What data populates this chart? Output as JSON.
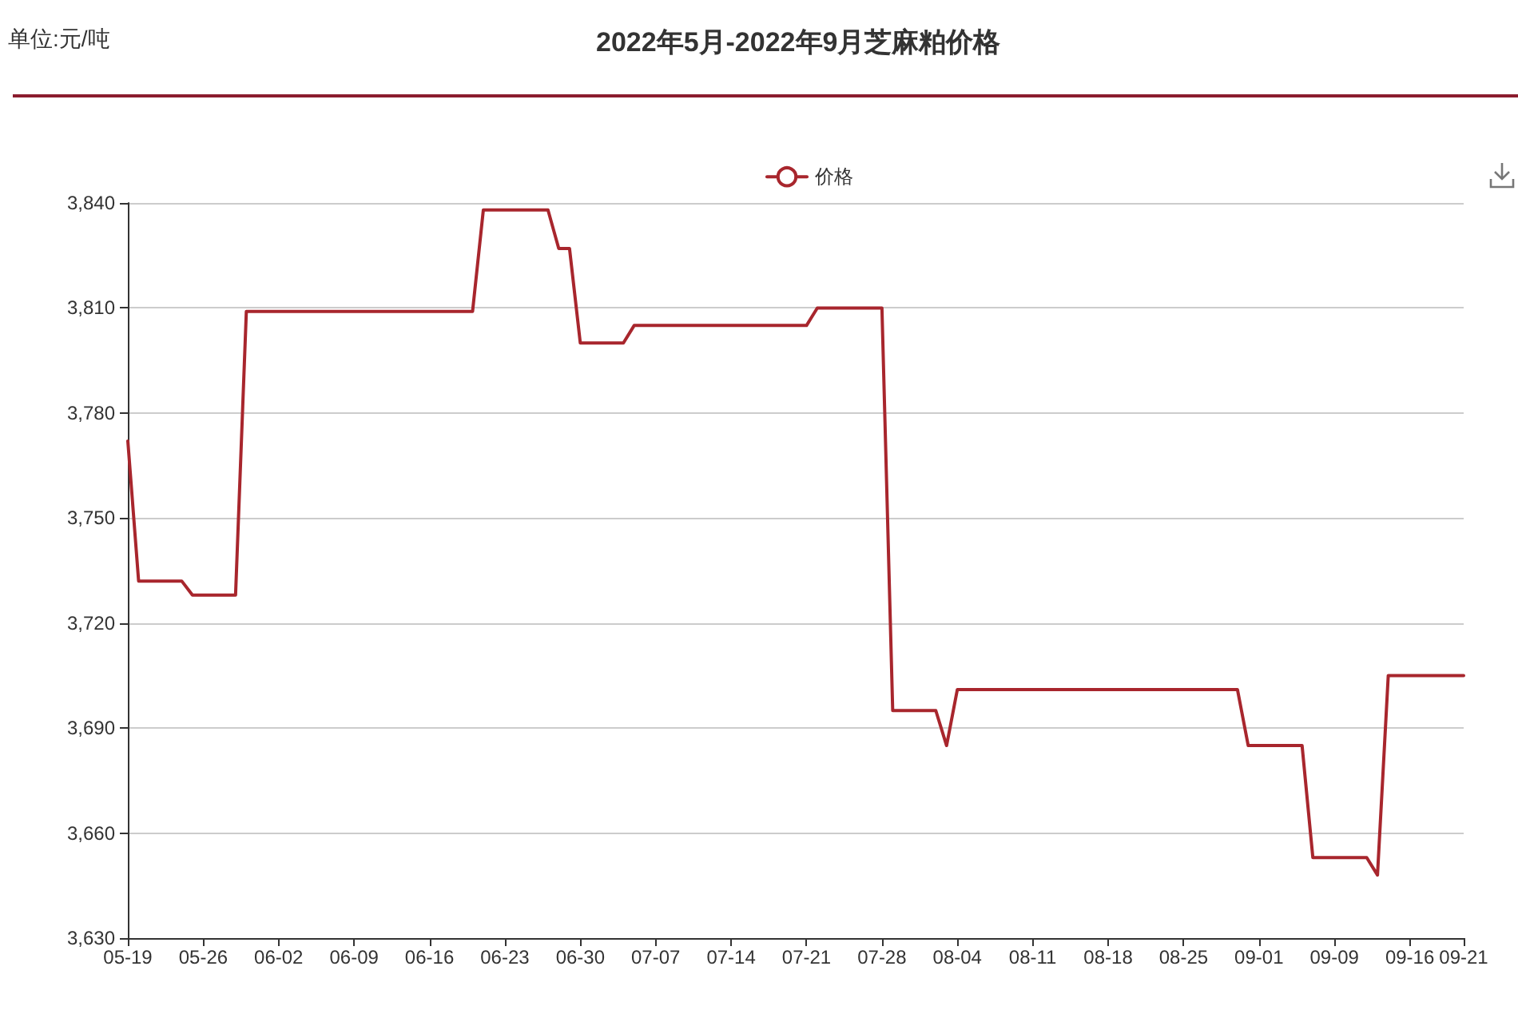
{
  "chart_data": {
    "type": "line",
    "title": "2022年5月-2022年9月芝麻粕价格",
    "annotations": [
      "单位:元/吨"
    ],
    "categories": [
      "05-19",
      null,
      null,
      null,
      null,
      null,
      null,
      "05-26",
      null,
      null,
      null,
      null,
      null,
      null,
      "06-02",
      null,
      null,
      null,
      null,
      null,
      null,
      "06-09",
      null,
      null,
      null,
      null,
      null,
      null,
      "06-16",
      null,
      null,
      null,
      null,
      null,
      null,
      "06-23",
      null,
      null,
      null,
      null,
      null,
      null,
      "06-30",
      null,
      null,
      null,
      null,
      null,
      null,
      "07-07",
      null,
      null,
      null,
      null,
      null,
      null,
      "07-14",
      null,
      null,
      null,
      null,
      null,
      null,
      "07-21",
      null,
      null,
      null,
      null,
      null,
      null,
      "07-28",
      null,
      null,
      null,
      null,
      null,
      null,
      "08-04",
      null,
      null,
      null,
      null,
      null,
      null,
      "08-11",
      null,
      null,
      null,
      null,
      null,
      null,
      "08-18",
      null,
      null,
      null,
      null,
      null,
      null,
      "08-25",
      null,
      null,
      null,
      null,
      null,
      null,
      "09-01",
      null,
      null,
      null,
      null,
      null,
      null,
      "09-09",
      null,
      null,
      null,
      null,
      null,
      null,
      "09-16",
      null,
      null,
      null,
      null,
      "09-21"
    ],
    "series": [
      {
        "name": "价格",
        "color": "#a8262d",
        "values": [
          3772,
          3732,
          3732,
          3732,
          3732,
          3732,
          3728,
          3728,
          3728,
          3728,
          3728,
          3809,
          3809,
          3809,
          3809,
          3809,
          3809,
          3809,
          3809,
          3809,
          3809,
          3809,
          3809,
          3809,
          3809,
          3809,
          3809,
          3809,
          3809,
          3809,
          3809,
          3809,
          3809,
          3838,
          3838,
          3838,
          3838,
          3838,
          3838,
          3838,
          3827,
          3827,
          3800,
          3800,
          3800,
          3800,
          3800,
          3805,
          3805,
          3805,
          3805,
          3805,
          3805,
          3805,
          3805,
          3805,
          3805,
          3805,
          3805,
          3805,
          3805,
          3805,
          3805,
          3805,
          3810,
          3810,
          3810,
          3810,
          3810,
          3810,
          3810,
          3695,
          3695,
          3695,
          3695,
          3695,
          3685,
          3701,
          3701,
          3701,
          3701,
          3701,
          3701,
          3701,
          3701,
          3701,
          3701,
          3701,
          3701,
          3701,
          3701,
          3701,
          3701,
          3701,
          3701,
          3701,
          3701,
          3701,
          3701,
          3701,
          3701,
          3701,
          3701,
          3701,
          3685,
          3685,
          3685,
          3685,
          3685,
          3685,
          3653,
          3653,
          3653,
          3653,
          3653,
          3653,
          3648,
          3705,
          3705,
          3705,
          3705,
          3705,
          3705,
          3705,
          3705
        ]
      }
    ],
    "ylim": [
      3630,
      3840
    ],
    "yticks": [
      {
        "value": 3630,
        "label": "3,630"
      },
      {
        "value": 3660,
        "label": "3,660"
      },
      {
        "value": 3690,
        "label": "3,690"
      },
      {
        "value": 3720,
        "label": "3,720"
      },
      {
        "value": 3750,
        "label": "3,750"
      },
      {
        "value": 3780,
        "label": "3,780"
      },
      {
        "value": 3810,
        "label": "3,810"
      },
      {
        "value": 3840,
        "label": "3,840"
      }
    ],
    "grid": "y",
    "legend": "top"
  }
}
